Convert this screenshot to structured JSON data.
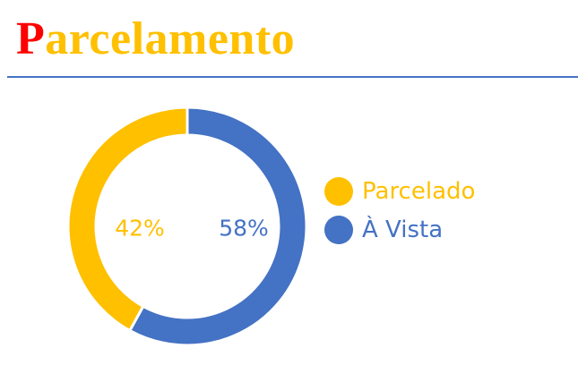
{
  "title": {
    "first_letter": "P",
    "rest": "arcelamento",
    "first_letter_color": "#ff0000",
    "rest_color": "#ffc000"
  },
  "rule_color": "#4472c4",
  "chart_data": {
    "type": "pie",
    "variant": "doughnut",
    "slices": [
      {
        "label": "Parcelado",
        "value": 42,
        "display": "42%",
        "color": "#ffc000"
      },
      {
        "label": "À Vista",
        "value": 58,
        "display": "58%",
        "color": "#4472c4"
      }
    ],
    "legend_position": "right"
  }
}
